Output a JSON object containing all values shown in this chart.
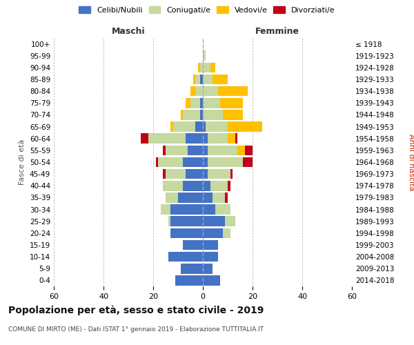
{
  "age_groups_bottom_to_top": [
    "0-4",
    "5-9",
    "10-14",
    "15-19",
    "20-24",
    "25-29",
    "30-34",
    "35-39",
    "40-44",
    "45-49",
    "50-54",
    "55-59",
    "60-64",
    "65-69",
    "70-74",
    "75-79",
    "80-84",
    "85-89",
    "90-94",
    "95-99",
    "100+"
  ],
  "birth_years_bottom_to_top": [
    "2014-2018",
    "2009-2013",
    "2004-2008",
    "1999-2003",
    "1994-1998",
    "1989-1993",
    "1984-1988",
    "1979-1983",
    "1974-1978",
    "1969-1973",
    "1964-1968",
    "1959-1963",
    "1954-1958",
    "1949-1953",
    "1944-1948",
    "1939-1943",
    "1934-1938",
    "1929-1933",
    "1924-1928",
    "1919-1923",
    "≤ 1918"
  ],
  "males": {
    "celibi": [
      11,
      9,
      14,
      8,
      13,
      13,
      13,
      10,
      8,
      7,
      8,
      6,
      7,
      3,
      1,
      1,
      0,
      1,
      0,
      0,
      0
    ],
    "coniugati": [
      0,
      0,
      0,
      0,
      0,
      1,
      4,
      5,
      8,
      8,
      10,
      9,
      15,
      9,
      7,
      4,
      3,
      2,
      1,
      0,
      0
    ],
    "vedovi": [
      0,
      0,
      0,
      0,
      0,
      0,
      0,
      0,
      0,
      0,
      0,
      0,
      0,
      1,
      1,
      2,
      2,
      1,
      1,
      0,
      0
    ],
    "divorziati": [
      0,
      0,
      0,
      0,
      0,
      0,
      0,
      0,
      0,
      1,
      1,
      1,
      3,
      0,
      0,
      0,
      0,
      0,
      0,
      0,
      0
    ]
  },
  "females": {
    "nubili": [
      7,
      4,
      6,
      6,
      8,
      9,
      5,
      4,
      3,
      2,
      2,
      2,
      2,
      1,
      0,
      0,
      0,
      0,
      0,
      0,
      0
    ],
    "coniugate": [
      0,
      0,
      0,
      0,
      3,
      4,
      6,
      5,
      7,
      9,
      14,
      12,
      8,
      9,
      8,
      7,
      6,
      4,
      3,
      1,
      0
    ],
    "vedove": [
      0,
      0,
      0,
      0,
      0,
      0,
      0,
      0,
      0,
      0,
      0,
      3,
      3,
      14,
      8,
      9,
      12,
      6,
      2,
      0,
      0
    ],
    "divorziate": [
      0,
      0,
      0,
      0,
      0,
      0,
      0,
      1,
      1,
      1,
      4,
      3,
      1,
      0,
      0,
      0,
      0,
      0,
      0,
      0,
      0
    ]
  },
  "colors": {
    "celibi": "#4472c4",
    "coniugati": "#c5d9a0",
    "vedovi": "#ffc000",
    "divorziati": "#c0001a"
  },
  "xlim": 60,
  "title": "Popolazione per età, sesso e stato civile - 2019",
  "subtitle": "COMUNE DI MIRTO (ME) - Dati ISTAT 1° gennaio 2019 - Elaborazione TUTTITALIA.IT",
  "ylabel_left": "Fasce di età",
  "ylabel_right": "Anni di nascita",
  "label_maschi": "Maschi",
  "label_femmine": "Femmine",
  "legend_labels": [
    "Celibi/Nubili",
    "Coniugati/e",
    "Vedovi/e",
    "Divorziati/e"
  ],
  "bg_color": "#ffffff",
  "grid_color": "#bbbbbb"
}
